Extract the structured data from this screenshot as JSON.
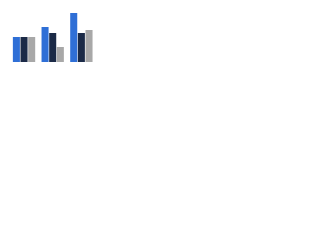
{
  "chart_data": {
    "type": "bar",
    "categories": [
      null,
      null,
      null
    ],
    "series": [
      {
        "color": "#2f6fd6",
        "values": [
          25,
          35,
          49
        ]
      },
      {
        "color": "#1b2a47",
        "values": [
          25,
          29,
          29
        ]
      },
      {
        "color": "#a8a8a8",
        "values": [
          25,
          15,
          32
        ]
      }
    ],
    "ylim": [
      0,
      52
    ]
  }
}
